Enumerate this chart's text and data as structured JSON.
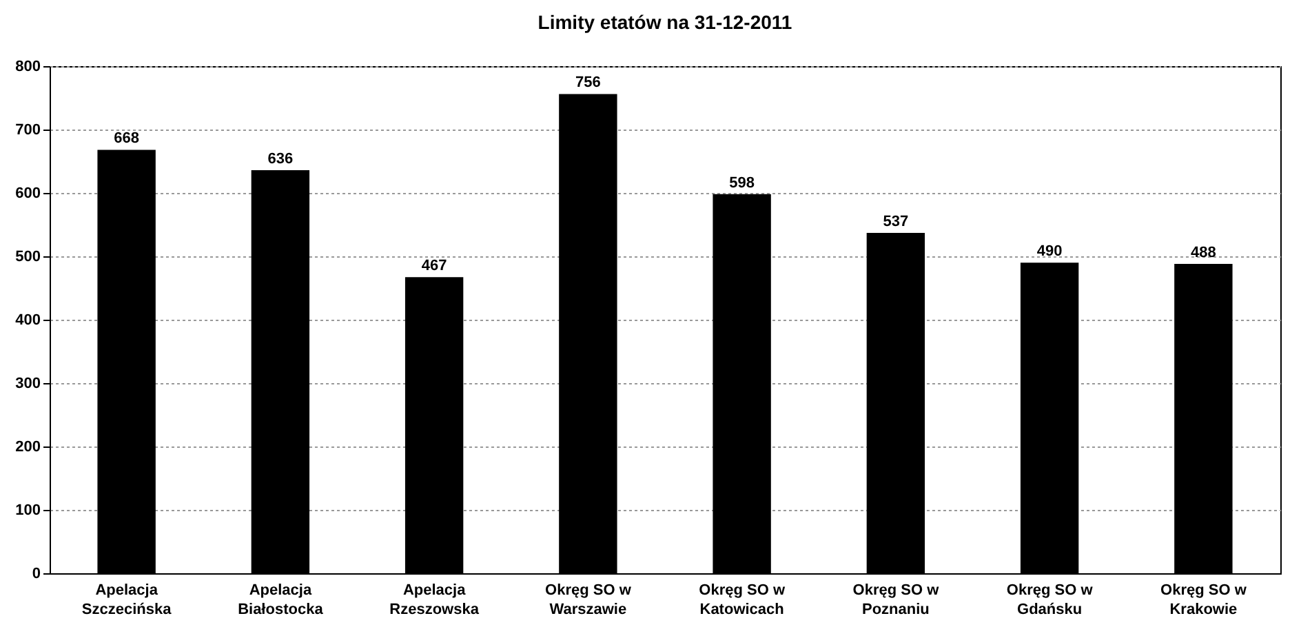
{
  "chart_data": {
    "type": "bar",
    "title": "Limity etatów na 31-12-2011",
    "categories": [
      "Apelacja Szczecińska",
      "Apelacja Białostocka",
      "Apelacja Rzeszowska",
      "Okręg SO w Warszawie",
      "Okręg SO w Katowicach",
      "Okręg SO w Poznaniu",
      "Okręg SO w Gdańsku",
      "Okręg SO w Krakowie"
    ],
    "values": [
      668,
      636,
      467,
      756,
      598,
      537,
      490,
      488
    ],
    "color": "#000000",
    "ylim": [
      0,
      800
    ],
    "yticks": [
      0,
      100,
      200,
      300,
      400,
      500,
      600,
      700,
      800
    ],
    "grid": "y",
    "data_labels": true
  }
}
